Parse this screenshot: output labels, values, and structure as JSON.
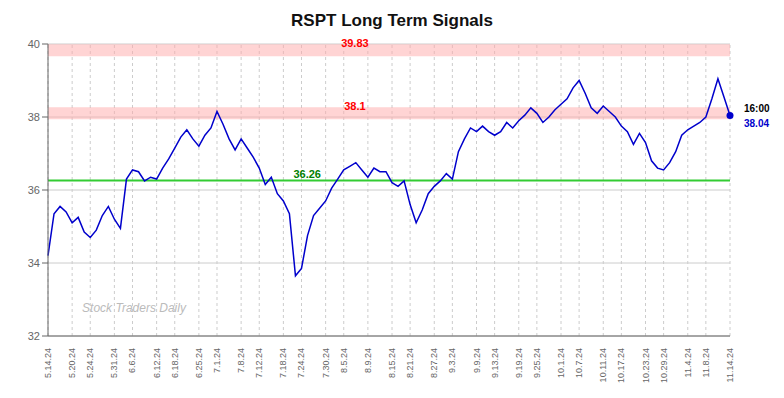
{
  "chart_data": {
    "type": "line",
    "title": "RSPT Long Term Signals",
    "color": "#0000cc",
    "ylim": [
      32,
      40
    ],
    "yticks": [
      32,
      34,
      36,
      38,
      40
    ],
    "grid": true,
    "watermark": "Stock Traders Daily",
    "last_label": {
      "time": "16:00",
      "price": 38.04
    },
    "reference_lines": [
      {
        "value": 39.83,
        "label": "39.83",
        "color": "#ffaaaa",
        "label_color": "red"
      },
      {
        "value": 38.1,
        "label": "38.1",
        "color": "#ffaaaa",
        "label_color": "red"
      },
      {
        "value": 36.26,
        "label": "36.26",
        "color": "#33cc33",
        "label_color": "green"
      }
    ],
    "categories": [
      "5.14.24",
      null,
      null,
      null,
      "5.20.24",
      null,
      null,
      "5.24.24",
      null,
      null,
      null,
      "5.31.24",
      null,
      null,
      "6.6.24",
      null,
      null,
      null,
      "6.12.24",
      null,
      null,
      "6.18.24",
      null,
      null,
      null,
      "6.25.24",
      null,
      null,
      "7.1.24",
      null,
      null,
      null,
      "7.8.24",
      null,
      null,
      "7.12.24",
      null,
      null,
      null,
      "7.18.24",
      null,
      null,
      "7.24.24",
      null,
      null,
      null,
      "7.30.24",
      null,
      null,
      "8.5.24",
      null,
      null,
      null,
      "8.9.24",
      null,
      null,
      null,
      "8.15.24",
      null,
      null,
      "8.21.24",
      null,
      null,
      null,
      "8.27.24",
      null,
      null,
      "9.3.24",
      null,
      null,
      null,
      "9.9.24",
      null,
      null,
      "9.13.24",
      null,
      null,
      null,
      "9.19.24",
      null,
      null,
      "9.25.24",
      null,
      null,
      null,
      "10.1.24",
      null,
      null,
      "10.7.24",
      null,
      null,
      null,
      "10.11.24",
      null,
      null,
      "10.17.24",
      null,
      null,
      null,
      "10.23.24",
      null,
      null,
      "10.29.24",
      null,
      null,
      null,
      "11.4.24",
      null,
      null,
      "11.8.24",
      null,
      null,
      null,
      "11.14.24"
    ],
    "values": [
      34.2,
      35.35,
      35.55,
      35.4,
      35.1,
      35.25,
      34.85,
      34.7,
      34.9,
      35.3,
      35.55,
      35.2,
      34.95,
      36.3,
      36.55,
      36.5,
      36.25,
      36.35,
      36.3,
      36.6,
      36.85,
      37.15,
      37.45,
      37.65,
      37.4,
      37.2,
      37.5,
      37.7,
      38.15,
      37.8,
      37.4,
      37.1,
      37.4,
      37.15,
      36.9,
      36.6,
      36.15,
      36.35,
      35.9,
      35.7,
      35.35,
      33.65,
      33.85,
      34.75,
      35.3,
      35.5,
      35.7,
      36.05,
      36.3,
      36.55,
      36.65,
      36.75,
      36.55,
      36.35,
      36.6,
      36.5,
      36.5,
      36.2,
      36.1,
      36.25,
      35.6,
      35.1,
      35.45,
      35.9,
      36.1,
      36.25,
      36.45,
      36.3,
      37.05,
      37.4,
      37.7,
      37.6,
      37.75,
      37.6,
      37.5,
      37.6,
      37.85,
      37.7,
      37.9,
      38.05,
      38.25,
      38.1,
      37.85,
      38.0,
      38.2,
      38.35,
      38.5,
      38.8,
      39.0,
      38.65,
      38.25,
      38.1,
      38.3,
      38.15,
      38.0,
      37.75,
      37.6,
      37.25,
      37.55,
      37.3,
      36.8,
      36.6,
      36.55,
      36.75,
      37.05,
      37.5,
      37.65,
      37.75,
      37.85,
      38.0,
      38.5,
      39.05,
      38.55,
      38.04
    ]
  }
}
